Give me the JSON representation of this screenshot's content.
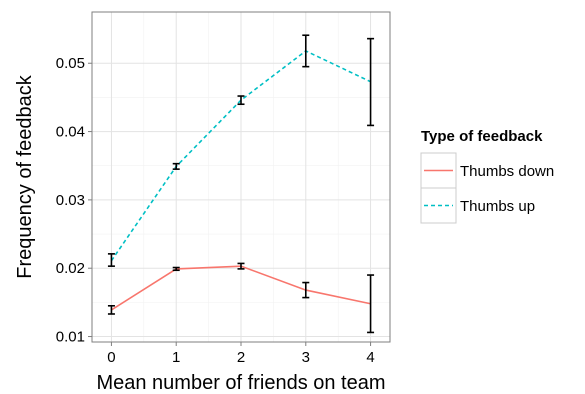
{
  "chart_data": {
    "type": "line",
    "xlabel": "Mean number of friends on team",
    "ylabel": "Frequency of feedback",
    "x": [
      0,
      1,
      2,
      3,
      4
    ],
    "xlim": [
      -0.3,
      4.3
    ],
    "ylim": [
      0.0092,
      0.0575
    ],
    "x_ticks": [
      {
        "value": 0,
        "label": "0"
      },
      {
        "value": 1,
        "label": "1"
      },
      {
        "value": 2,
        "label": "2"
      },
      {
        "value": 3,
        "label": "3"
      },
      {
        "value": 4,
        "label": "4"
      }
    ],
    "y_ticks": [
      {
        "value": 0.01,
        "label": "0.01"
      },
      {
        "value": 0.02,
        "label": "0.02"
      },
      {
        "value": 0.03,
        "label": "0.03"
      },
      {
        "value": 0.04,
        "label": "0.04"
      },
      {
        "value": 0.05,
        "label": "0.05"
      }
    ],
    "grid": true,
    "legend": {
      "title": "Type of feedback",
      "position": "right"
    },
    "series": [
      {
        "name": "Thumbs down",
        "color": "#F8766D",
        "dash": "solid",
        "values": [
          0.0139,
          0.0199,
          0.0203,
          0.0168,
          0.0148
        ],
        "error_low": [
          0.0133,
          0.0197,
          0.0199,
          0.0157,
          0.0106
        ],
        "error_high": [
          0.0145,
          0.0201,
          0.0207,
          0.0179,
          0.019
        ]
      },
      {
        "name": "Thumbs up",
        "color": "#00BFC4",
        "dash": "dashed",
        "values": [
          0.0211,
          0.0349,
          0.0446,
          0.0518,
          0.0473
        ],
        "error_low": [
          0.0203,
          0.0345,
          0.044,
          0.0495,
          0.0409
        ],
        "error_high": [
          0.0221,
          0.0353,
          0.0452,
          0.0541,
          0.0536
        ]
      }
    ]
  }
}
